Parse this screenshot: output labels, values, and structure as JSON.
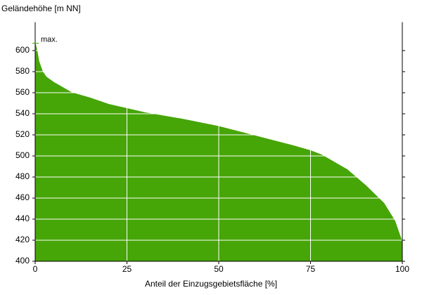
{
  "chart_data": {
    "type": "area",
    "title": "Geländehöhe [m NN]",
    "x_label": "Anteil der Einzugsgebietsfläche [%]",
    "annotation": "max.",
    "max_value": 607,
    "x": [
      0,
      0.5,
      1,
      2,
      3,
      5,
      10,
      15,
      20,
      25,
      30,
      40,
      50,
      60,
      70,
      75,
      78,
      85,
      90,
      95,
      98,
      99,
      100
    ],
    "values": [
      607,
      600,
      590,
      580,
      575,
      570,
      560,
      555,
      549,
      545,
      541,
      535,
      528,
      519,
      510,
      505,
      501,
      487,
      472,
      455,
      438,
      428,
      418
    ],
    "color": "#46a507",
    "xlim": [
      0,
      100
    ],
    "xticks": [
      0,
      25,
      50,
      75,
      100
    ],
    "ylim": [
      400,
      627
    ],
    "yticks": [
      400,
      420,
      440,
      460,
      480,
      500,
      520,
      540,
      560,
      580,
      600
    ],
    "grid": true
  }
}
